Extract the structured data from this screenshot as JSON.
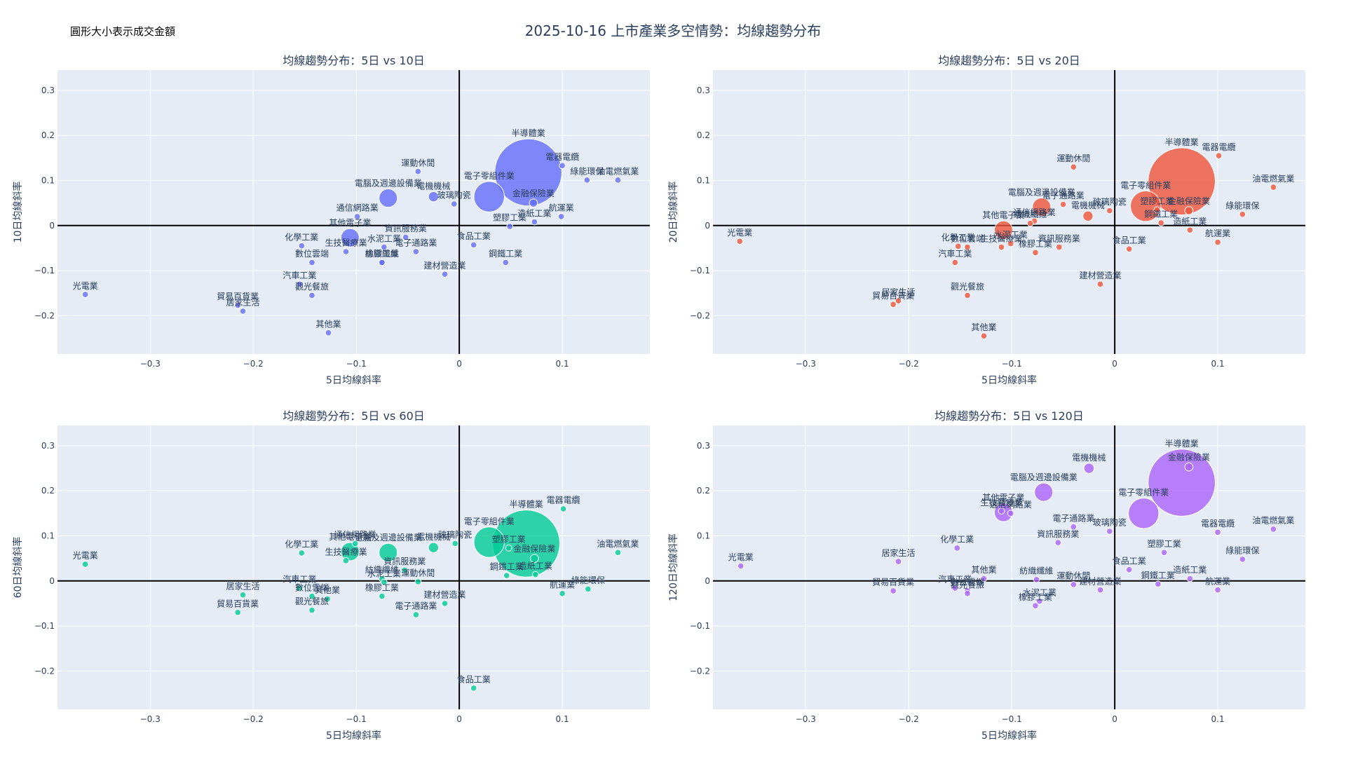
{
  "title": "2025-10-16 上市產業多空情勢：均線趨勢分布",
  "size_note": "圓形大小表示成交金額",
  "chart_data": [
    {
      "type": "scatter",
      "title": "均線趨勢分布：5日 vs 10日",
      "xlabel": "5日均線斜率",
      "ylabel": "10日均線斜率",
      "color": "#636efa",
      "xlim": [
        -0.39,
        0.185
      ],
      "ylim": [
        -0.285,
        0.345
      ],
      "xticks": [
        -0.3,
        -0.2,
        -0.1,
        0,
        0.1
      ],
      "xtick_labels": [
        "−0.3",
        "−0.2",
        "−0.1",
        "0",
        "0.1"
      ],
      "yticks": [
        -0.2,
        -0.1,
        0,
        0.1,
        0.2,
        0.3
      ],
      "ytick_labels": [
        "−0.2",
        "−0.1",
        "0",
        "0.1",
        "0.2",
        "0.3"
      ],
      "points": [
        {
          "label": "半導體業",
          "x": 0.067,
          "y": 0.118,
          "size": 33
        },
        {
          "label": "電子零組件業",
          "x": 0.029,
          "y": 0.064,
          "size": 15
        },
        {
          "label": "電腦及週邊設備業",
          "x": -0.069,
          "y": 0.061,
          "size": 9
        },
        {
          "label": "其他電子業",
          "x": -0.106,
          "y": -0.027,
          "size": 9
        },
        {
          "label": "電器電纜",
          "x": 0.1,
          "y": 0.133,
          "size": 3
        },
        {
          "label": "綠能環保",
          "x": 0.124,
          "y": 0.101,
          "size": 3
        },
        {
          "label": "油電燃氣業",
          "x": 0.154,
          "y": 0.101,
          "size": 3
        },
        {
          "label": "運動休閒",
          "x": -0.04,
          "y": 0.12,
          "size": 3
        },
        {
          "label": "電機機械",
          "x": -0.025,
          "y": 0.064,
          "size": 5
        },
        {
          "label": "玻璃陶瓷",
          "x": -0.005,
          "y": 0.048,
          "size": 3
        },
        {
          "label": "金融保險業",
          "x": 0.072,
          "y": 0.05,
          "size": 4
        },
        {
          "label": "造紙工業",
          "x": 0.073,
          "y": 0.008,
          "size": 3
        },
        {
          "label": "航運業",
          "x": 0.099,
          "y": 0.02,
          "size": 3
        },
        {
          "label": "塑膠工業",
          "x": 0.049,
          "y": -0.002,
          "size": 3
        },
        {
          "label": "通信網路業",
          "x": -0.099,
          "y": 0.02,
          "size": 3
        },
        {
          "label": "資訊服務業",
          "x": -0.052,
          "y": -0.026,
          "size": 3
        },
        {
          "label": "化學工業",
          "x": -0.153,
          "y": -0.045,
          "size": 3
        },
        {
          "label": "生技醫療業",
          "x": -0.11,
          "y": -0.058,
          "size": 3
        },
        {
          "label": "水泥工業",
          "x": -0.073,
          "y": -0.048,
          "size": 3
        },
        {
          "label": "電子通路業",
          "x": -0.042,
          "y": -0.058,
          "size": 3
        },
        {
          "label": "紡織纖維",
          "x": -0.075,
          "y": -0.082,
          "size": 3
        },
        {
          "label": "橡膠工業",
          "x": -0.075,
          "y": -0.082,
          "size": 3
        },
        {
          "label": "食品工業",
          "x": 0.014,
          "y": -0.043,
          "size": 3
        },
        {
          "label": "數位雲端",
          "x": -0.143,
          "y": -0.082,
          "size": 3
        },
        {
          "label": "鋼鐵工業",
          "x": 0.045,
          "y": -0.082,
          "size": 3
        },
        {
          "label": "建材營造業",
          "x": -0.014,
          "y": -0.108,
          "size": 3
        },
        {
          "label": "汽車工業",
          "x": -0.155,
          "y": -0.13,
          "size": 3
        },
        {
          "label": "觀光餐旅",
          "x": -0.143,
          "y": -0.155,
          "size": 3
        },
        {
          "label": "光電業",
          "x": -0.363,
          "y": -0.153,
          "size": 3
        },
        {
          "label": "貿易百貨業",
          "x": -0.215,
          "y": -0.177,
          "size": 3
        },
        {
          "label": "居家生活",
          "x": -0.21,
          "y": -0.19,
          "size": 3
        },
        {
          "label": "其他業",
          "x": -0.127,
          "y": -0.238,
          "size": 3
        }
      ]
    },
    {
      "type": "scatter",
      "title": "均線趨勢分布：5日 vs 20日",
      "xlabel": "5日均線斜率",
      "ylabel": "20日均線斜率",
      "color": "#ef553b",
      "xlim": [
        -0.39,
        0.185
      ],
      "ylim": [
        -0.285,
        0.345
      ],
      "xticks": [
        -0.3,
        -0.2,
        -0.1,
        0,
        0.1
      ],
      "xtick_labels": [
        "−0.3",
        "−0.2",
        "−0.1",
        "0",
        "0.1"
      ],
      "yticks": [
        -0.2,
        -0.1,
        0,
        0.1,
        0.2,
        0.3
      ],
      "ytick_labels": [
        "−0.2",
        "−0.1",
        "0",
        "0.1",
        "0.2",
        "0.3"
      ],
      "points": [
        {
          "label": "半導體業",
          "x": 0.065,
          "y": 0.098,
          "size": 33
        },
        {
          "label": "電子零組件業",
          "x": 0.03,
          "y": 0.043,
          "size": 15
        },
        {
          "label": "電腦及週邊設備業",
          "x": -0.071,
          "y": 0.041,
          "size": 9
        },
        {
          "label": "其他電子業",
          "x": -0.108,
          "y": -0.01,
          "size": 9
        },
        {
          "label": "電器電纜",
          "x": 0.101,
          "y": 0.155,
          "size": 3
        },
        {
          "label": "油電燃氣業",
          "x": 0.154,
          "y": 0.085,
          "size": 3
        },
        {
          "label": "綠能環保",
          "x": 0.124,
          "y": 0.025,
          "size": 3
        },
        {
          "label": "運動休閒",
          "x": -0.04,
          "y": 0.13,
          "size": 3
        },
        {
          "label": "電子通路業",
          "x": -0.05,
          "y": 0.047,
          "size": 3
        },
        {
          "label": "電機機械",
          "x": -0.026,
          "y": 0.021,
          "size": 5
        },
        {
          "label": "玻璃陶瓷",
          "x": -0.005,
          "y": 0.033,
          "size": 3
        },
        {
          "label": "塑膠工業",
          "x": 0.041,
          "y": 0.035,
          "size": 3
        },
        {
          "label": "金融保險業",
          "x": 0.072,
          "y": 0.033,
          "size": 4
        },
        {
          "label": "鋼鐵工業",
          "x": 0.045,
          "y": 0.006,
          "size": 3
        },
        {
          "label": "造紙工業",
          "x": 0.073,
          "y": -0.01,
          "size": 3
        },
        {
          "label": "航運業",
          "x": 0.1,
          "y": -0.037,
          "size": 3
        },
        {
          "label": "通信網路業",
          "x": -0.078,
          "y": 0.01,
          "size": 3
        },
        {
          "label": "紡織纖維",
          "x": -0.082,
          "y": 0.005,
          "size": 3
        },
        {
          "label": "食品工業",
          "x": 0.014,
          "y": -0.052,
          "size": 3
        },
        {
          "label": "資訊服務業",
          "x": -0.054,
          "y": -0.048,
          "size": 3
        },
        {
          "label": "橡膠工業",
          "x": -0.077,
          "y": -0.06,
          "size": 3
        },
        {
          "label": "化學工業",
          "x": -0.152,
          "y": -0.046,
          "size": 3
        },
        {
          "label": "數位雲端",
          "x": -0.143,
          "y": -0.048,
          "size": 3
        },
        {
          "label": "生技醫療業",
          "x": -0.11,
          "y": -0.048,
          "size": 3
        },
        {
          "label": "水泥工業",
          "x": -0.101,
          "y": -0.04,
          "size": 3
        },
        {
          "label": "汽車工業",
          "x": -0.155,
          "y": -0.082,
          "size": 3
        },
        {
          "label": "建材營造業",
          "x": -0.014,
          "y": -0.13,
          "size": 3
        },
        {
          "label": "觀光餐旅",
          "x": -0.143,
          "y": -0.155,
          "size": 3
        },
        {
          "label": "光電業",
          "x": -0.364,
          "y": -0.035,
          "size": 3
        },
        {
          "label": "居家生活",
          "x": -0.21,
          "y": -0.167,
          "size": 3
        },
        {
          "label": "貿易百貨業",
          "x": -0.215,
          "y": -0.175,
          "size": 3
        },
        {
          "label": "其他業",
          "x": -0.127,
          "y": -0.245,
          "size": 3
        }
      ]
    },
    {
      "type": "scatter",
      "title": "均線趨勢分布：5日 vs 60日",
      "xlabel": "5日均線斜率",
      "ylabel": "60日均線斜率",
      "color": "#00cc96",
      "xlim": [
        -0.39,
        0.185
      ],
      "ylim": [
        -0.285,
        0.345
      ],
      "xticks": [
        -0.3,
        -0.2,
        -0.1,
        0,
        0.1
      ],
      "xtick_labels": [
        "−0.3",
        "−0.2",
        "−0.1",
        "0",
        "0.1"
      ],
      "yticks": [
        -0.2,
        -0.1,
        0,
        0.1,
        0.2,
        0.3
      ],
      "ytick_labels": [
        "−0.2",
        "−0.1",
        "0",
        "0.1",
        "0.2",
        "0.3"
      ],
      "points": [
        {
          "label": "半導體業",
          "x": 0.065,
          "y": 0.083,
          "size": 33
        },
        {
          "label": "電子零組件業",
          "x": 0.029,
          "y": 0.086,
          "size": 15
        },
        {
          "label": "電腦及週邊設備業",
          "x": -0.069,
          "y": 0.063,
          "size": 9
        },
        {
          "label": "其他電子業",
          "x": -0.106,
          "y": 0.065,
          "size": 9
        },
        {
          "label": "電器電纜",
          "x": 0.101,
          "y": 0.16,
          "size": 3
        },
        {
          "label": "油電燃氣業",
          "x": 0.154,
          "y": 0.063,
          "size": 3
        },
        {
          "label": "綠能環保",
          "x": 0.125,
          "y": -0.018,
          "size": 3
        },
        {
          "label": "航運業",
          "x": 0.1,
          "y": -0.028,
          "size": 3
        },
        {
          "label": "塑膠工業",
          "x": 0.048,
          "y": 0.073,
          "size": 3
        },
        {
          "label": "金融保險業",
          "x": 0.073,
          "y": 0.05,
          "size": 4
        },
        {
          "label": "造紙工業",
          "x": 0.074,
          "y": 0.014,
          "size": 3
        },
        {
          "label": "鋼鐵工業",
          "x": 0.046,
          "y": 0.012,
          "size": 3
        },
        {
          "label": "電機機械",
          "x": -0.025,
          "y": 0.074,
          "size": 5
        },
        {
          "label": "玻璃陶瓷",
          "x": -0.004,
          "y": 0.083,
          "size": 3
        },
        {
          "label": "通信網路業",
          "x": -0.101,
          "y": 0.083,
          "size": 3
        },
        {
          "label": "資訊服務業",
          "x": -0.053,
          "y": 0.024,
          "size": 3
        },
        {
          "label": "化學工業",
          "x": -0.153,
          "y": 0.062,
          "size": 3
        },
        {
          "label": "生技醫療業",
          "x": -0.11,
          "y": 0.045,
          "size": 3
        },
        {
          "label": "運動休閒",
          "x": -0.04,
          "y": -0.002,
          "size": 3
        },
        {
          "label": "紡織纖維",
          "x": -0.075,
          "y": 0.005,
          "size": 3
        },
        {
          "label": "水泥工業",
          "x": -0.073,
          "y": -0.003,
          "size": 3
        },
        {
          "label": "橡膠工業",
          "x": -0.075,
          "y": -0.034,
          "size": 3
        },
        {
          "label": "建材營造業",
          "x": -0.014,
          "y": -0.05,
          "size": 3
        },
        {
          "label": "電子通路業",
          "x": -0.042,
          "y": -0.075,
          "size": 3
        },
        {
          "label": "汽車工業",
          "x": -0.155,
          "y": -0.016,
          "size": 3
        },
        {
          "label": "數位雲端",
          "x": -0.143,
          "y": -0.034,
          "size": 3
        },
        {
          "label": "其他業",
          "x": -0.128,
          "y": -0.04,
          "size": 3
        },
        {
          "label": "觀光餐旅",
          "x": -0.143,
          "y": -0.065,
          "size": 3
        },
        {
          "label": "居家生活",
          "x": -0.21,
          "y": -0.031,
          "size": 3
        },
        {
          "label": "貿易百貨業",
          "x": -0.215,
          "y": -0.07,
          "size": 3
        },
        {
          "label": "光電業",
          "x": -0.363,
          "y": 0.037,
          "size": 3
        },
        {
          "label": "食品工業",
          "x": 0.014,
          "y": -0.238,
          "size": 3
        }
      ]
    },
    {
      "type": "scatter",
      "title": "均線趨勢分布：5日 vs 120日",
      "xlabel": "5日均線斜率",
      "ylabel": "120日均線斜率",
      "color": "#ab63fa",
      "xlim": [
        -0.39,
        0.185
      ],
      "ylim": [
        -0.285,
        0.345
      ],
      "xticks": [
        -0.3,
        -0.2,
        -0.1,
        0,
        0.1
      ],
      "xtick_labels": [
        "−0.3",
        "−0.2",
        "−0.1",
        "0",
        "0.1"
      ],
      "yticks": [
        -0.2,
        -0.1,
        0,
        0.1,
        0.2,
        0.3
      ],
      "ytick_labels": [
        "−0.2",
        "−0.1",
        "0",
        "0.1",
        "0.2",
        "0.3"
      ],
      "points": [
        {
          "label": "半導體業",
          "x": 0.065,
          "y": 0.218,
          "size": 33
        },
        {
          "label": "金融保險業",
          "x": 0.072,
          "y": 0.253,
          "size": 4
        },
        {
          "label": "電子零組件業",
          "x": 0.028,
          "y": 0.15,
          "size": 15
        },
        {
          "label": "電機機械",
          "x": -0.025,
          "y": 0.25,
          "size": 5
        },
        {
          "label": "電腦及週邊設備業",
          "x": -0.069,
          "y": 0.197,
          "size": 9
        },
        {
          "label": "其他電子業",
          "x": -0.108,
          "y": 0.152,
          "size": 9
        },
        {
          "label": "生技醫療業",
          "x": -0.11,
          "y": 0.155,
          "size": 3
        },
        {
          "label": "通信網路業",
          "x": -0.101,
          "y": 0.15,
          "size": 3
        },
        {
          "label": "電器電纜",
          "x": 0.1,
          "y": 0.108,
          "size": 3
        },
        {
          "label": "油電燃氣業",
          "x": 0.154,
          "y": 0.115,
          "size": 3
        },
        {
          "label": "綠能環保",
          "x": 0.124,
          "y": 0.048,
          "size": 3
        },
        {
          "label": "玻璃陶瓷",
          "x": -0.005,
          "y": 0.11,
          "size": 3
        },
        {
          "label": "電子通路業",
          "x": -0.04,
          "y": 0.12,
          "size": 3
        },
        {
          "label": "資訊服務業",
          "x": -0.055,
          "y": 0.085,
          "size": 3
        },
        {
          "label": "塑膠工業",
          "x": 0.048,
          "y": 0.063,
          "size": 3
        },
        {
          "label": "食品工業",
          "x": 0.014,
          "y": 0.025,
          "size": 3
        },
        {
          "label": "造紙工業",
          "x": 0.073,
          "y": 0.005,
          "size": 3
        },
        {
          "label": "鋼鐵工業",
          "x": 0.042,
          "y": -0.007,
          "size": 3
        },
        {
          "label": "航運業",
          "x": 0.1,
          "y": -0.02,
          "size": 3
        },
        {
          "label": "化學工業",
          "x": -0.153,
          "y": 0.073,
          "size": 3
        },
        {
          "label": "居家生活",
          "x": -0.21,
          "y": 0.043,
          "size": 3
        },
        {
          "label": "其他業",
          "x": -0.127,
          "y": 0.005,
          "size": 3
        },
        {
          "label": "紡織纖維",
          "x": -0.076,
          "y": 0.003,
          "size": 3
        },
        {
          "label": "運動休閒",
          "x": -0.04,
          "y": -0.008,
          "size": 3
        },
        {
          "label": "建材營造業",
          "x": -0.014,
          "y": -0.02,
          "size": 3
        },
        {
          "label": "汽車工業",
          "x": -0.155,
          "y": -0.016,
          "size": 3
        },
        {
          "label": "數位雲端",
          "x": -0.143,
          "y": -0.022,
          "size": 3
        },
        {
          "label": "觀光餐旅",
          "x": -0.143,
          "y": -0.028,
          "size": 3
        },
        {
          "label": "貿易百貨業",
          "x": -0.215,
          "y": -0.022,
          "size": 3
        },
        {
          "label": "光電業",
          "x": -0.363,
          "y": 0.033,
          "size": 3
        },
        {
          "label": "水泥工業",
          "x": -0.073,
          "y": -0.045,
          "size": 3
        },
        {
          "label": "橡膠工業",
          "x": -0.077,
          "y": -0.055,
          "size": 3
        }
      ]
    }
  ]
}
